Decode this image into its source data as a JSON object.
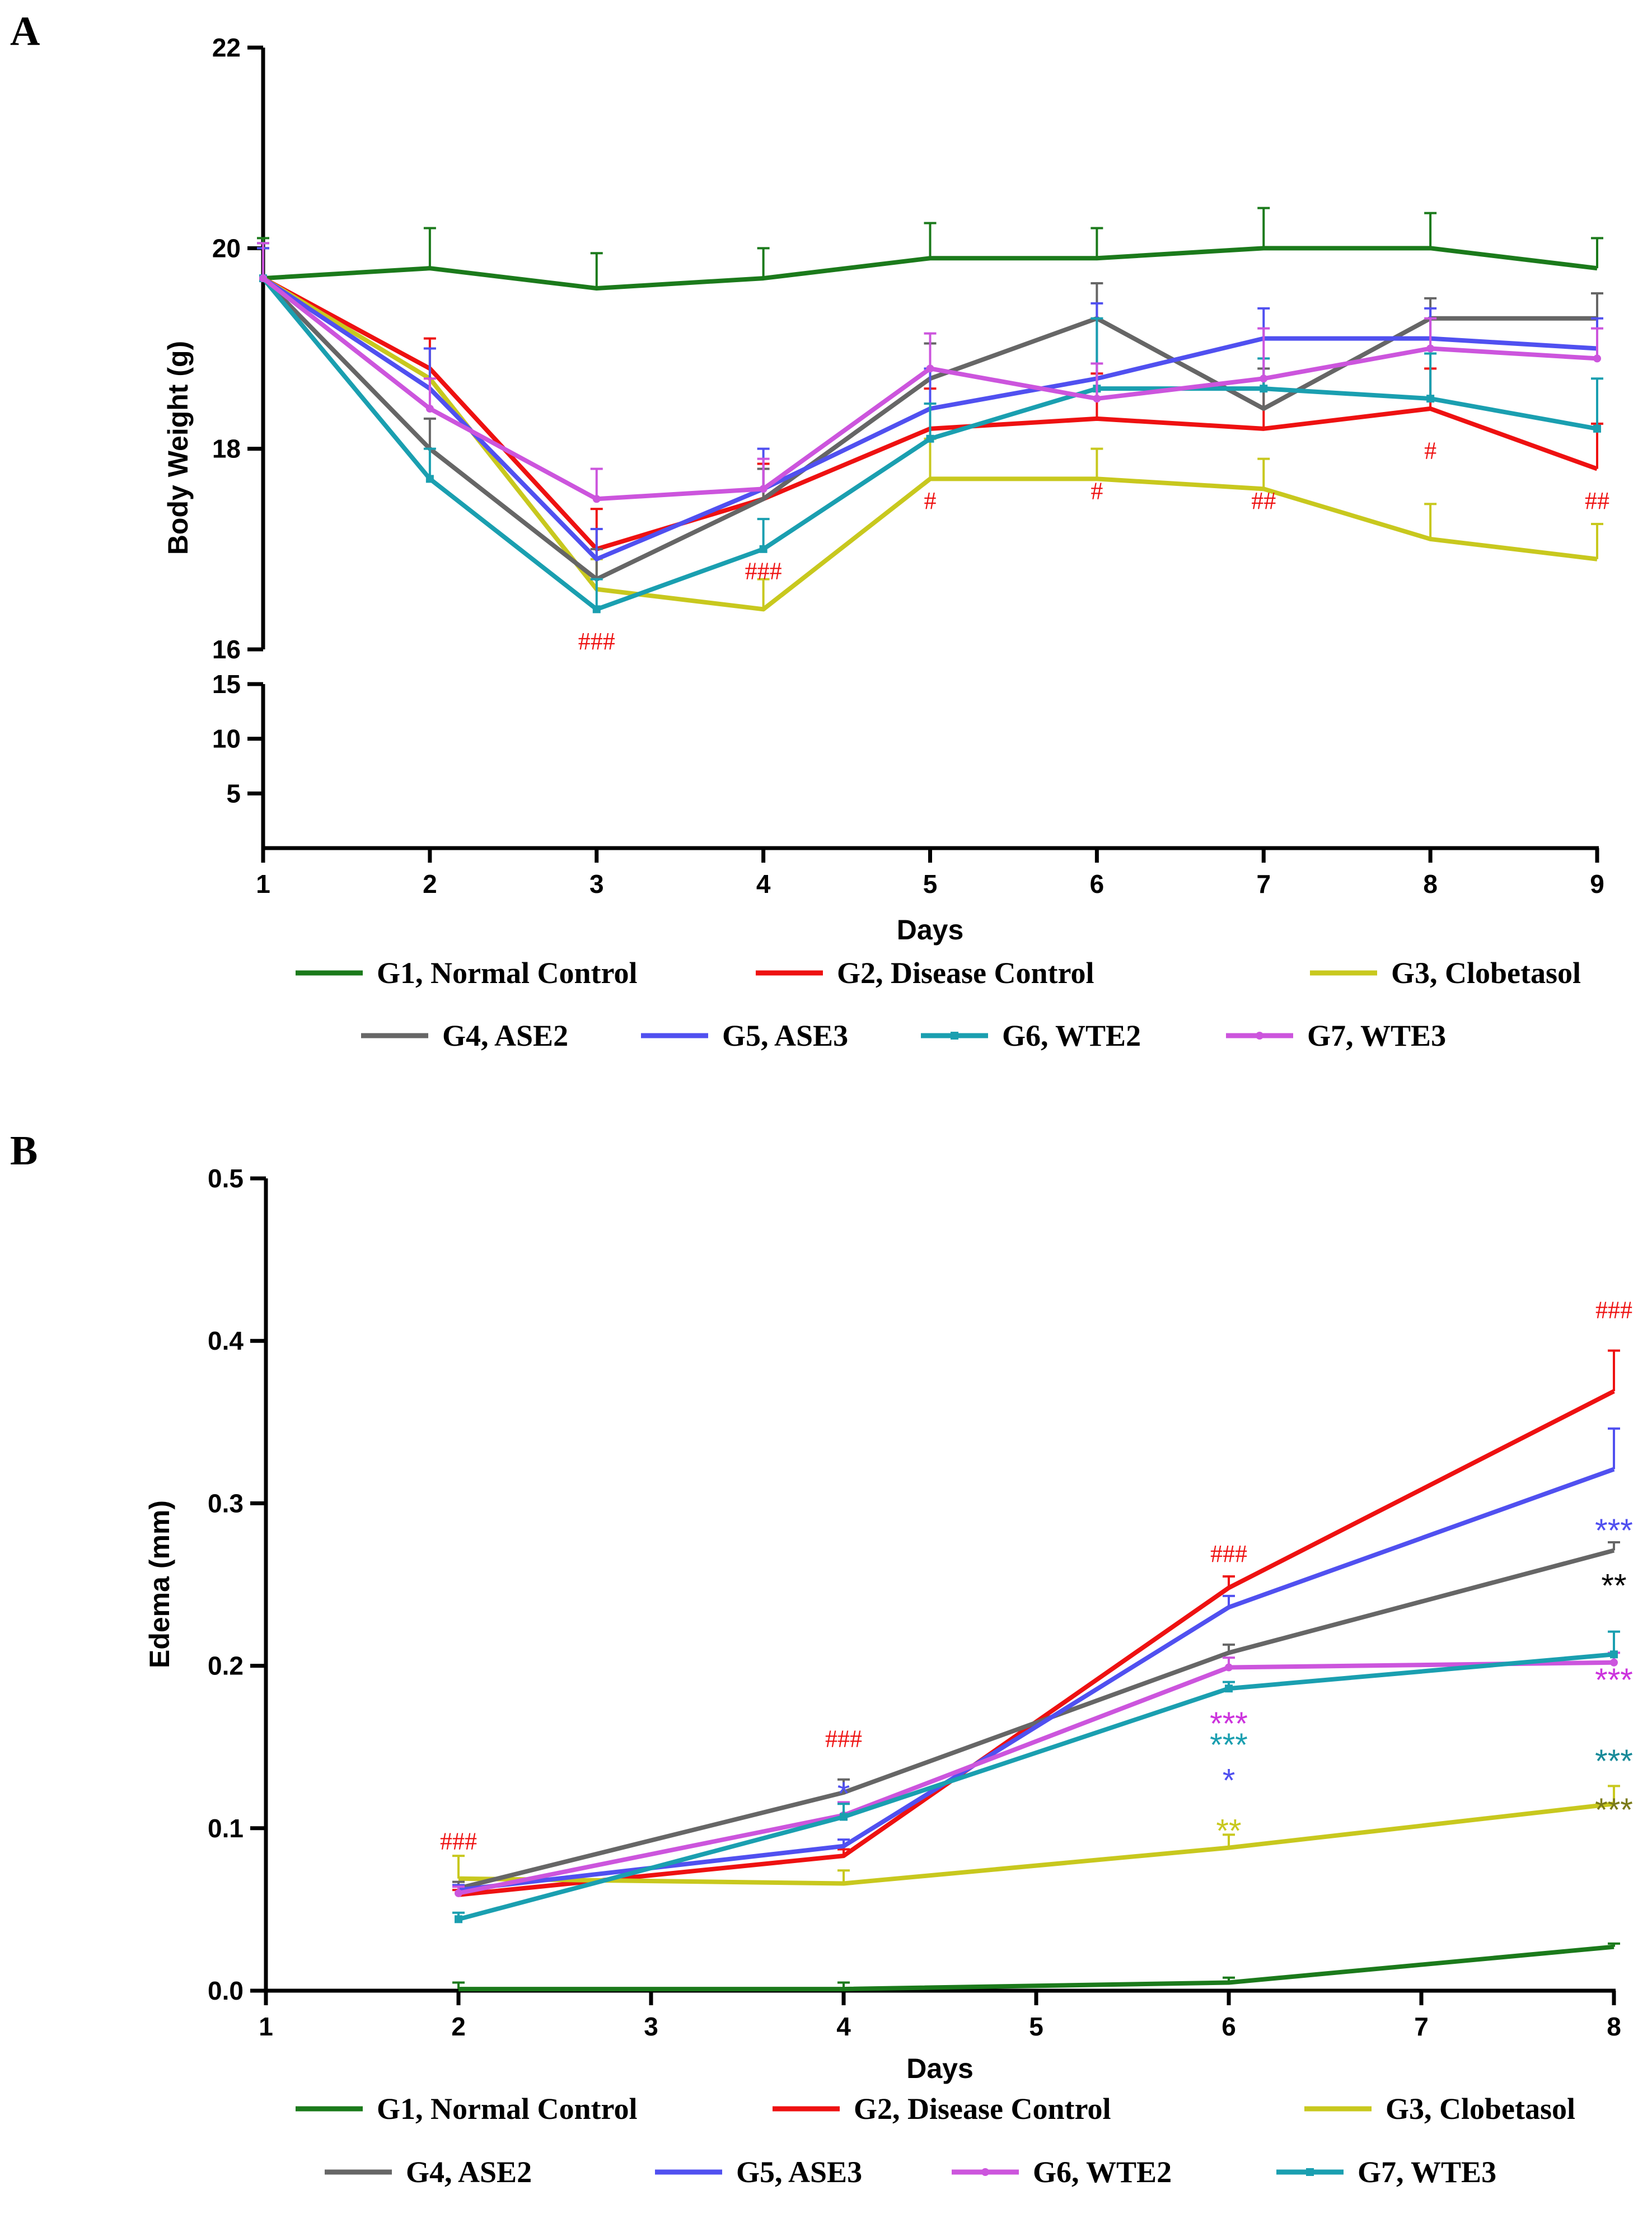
{
  "chart_data": [
    {
      "panel": "A",
      "type": "line",
      "title": "",
      "xlabel": "Days",
      "ylabel": "Body Weight (g)",
      "x": [
        1,
        2,
        3,
        4,
        5,
        6,
        7,
        8,
        9
      ],
      "xlim": [
        1,
        9
      ],
      "y_ticks_upper": [
        16,
        18,
        20,
        22
      ],
      "y_ticks_lower": [
        5,
        10,
        15
      ],
      "ylim_upper": [
        16,
        22
      ],
      "ylim_lower": [
        0,
        15
      ],
      "grid": false,
      "legend_position": "bottom",
      "series": [
        {
          "name": "G1, Normal Control",
          "color": "#1b7a1b",
          "marker": "none",
          "values": [
            19.7,
            19.8,
            19.6,
            19.7,
            19.9,
            19.9,
            20.0,
            20.0,
            19.8
          ],
          "errors": [
            0.4,
            0.4,
            0.35,
            0.3,
            0.35,
            0.3,
            0.4,
            0.35,
            0.3
          ]
        },
        {
          "name": "G2, Disease Control",
          "color": "#ee1111",
          "marker": "none",
          "values": [
            19.7,
            18.8,
            17.0,
            17.5,
            18.2,
            18.3,
            18.2,
            18.4,
            17.8
          ],
          "errors": [
            0.3,
            0.3,
            0.4,
            0.35,
            0.4,
            0.45,
            0.5,
            0.4,
            0.45
          ]
        },
        {
          "name": "G3, Clobetasol",
          "color": "#c8c81e",
          "marker": "none",
          "values": [
            19.7,
            18.7,
            16.6,
            16.4,
            17.7,
            17.7,
            17.6,
            17.1,
            16.9
          ],
          "errors": [
            0.3,
            0.3,
            0.3,
            0.3,
            0.4,
            0.3,
            0.3,
            0.35,
            0.35
          ]
        },
        {
          "name": "G4, ASE2",
          "color": "#666666",
          "marker": "none",
          "values": [
            19.7,
            18.0,
            16.7,
            17.5,
            18.7,
            19.3,
            18.4,
            19.3,
            19.3
          ],
          "errors": [
            0.3,
            0.3,
            0.3,
            0.3,
            0.35,
            0.35,
            0.4,
            0.2,
            0.25
          ]
        },
        {
          "name": "G5, ASE3",
          "color": "#5050f0",
          "marker": "none",
          "values": [
            19.7,
            18.6,
            16.9,
            17.6,
            18.4,
            18.7,
            19.1,
            19.1,
            19.0
          ],
          "errors": [
            0.3,
            0.4,
            0.3,
            0.4,
            0.4,
            0.75,
            0.3,
            0.3,
            0.3
          ]
        },
        {
          "name": "G6, WTE2",
          "color": "#1a9fb0",
          "marker": "square",
          "values": [
            19.7,
            17.7,
            16.4,
            17.0,
            18.1,
            18.6,
            18.6,
            18.5,
            18.2
          ],
          "errors": [
            0.35,
            0.3,
            0.3,
            0.3,
            0.35,
            0.7,
            0.3,
            0.45,
            0.5
          ]
        },
        {
          "name": "G7, WTE3",
          "color": "#cc55dd",
          "marker": "circle",
          "values": [
            19.7,
            18.4,
            17.5,
            17.6,
            18.8,
            18.5,
            18.7,
            19.0,
            18.9
          ],
          "errors": [
            0.35,
            0.3,
            0.3,
            0.3,
            0.35,
            0.35,
            0.5,
            0.3,
            0.3
          ]
        }
      ],
      "annotations": [
        {
          "x": 3,
          "y": 16.0,
          "text": "###",
          "color": "#ee1111"
        },
        {
          "x": 4,
          "y": 16.7,
          "text": "###",
          "color": "#ee1111"
        },
        {
          "x": 5,
          "y": 17.4,
          "text": "#",
          "color": "#ee1111"
        },
        {
          "x": 6,
          "y": 17.5,
          "text": "#",
          "color": "#ee1111"
        },
        {
          "x": 7,
          "y": 17.4,
          "text": "##",
          "color": "#ee1111"
        },
        {
          "x": 8,
          "y": 17.9,
          "text": "#",
          "color": "#ee1111"
        },
        {
          "x": 9,
          "y": 17.4,
          "text": "##",
          "color": "#ee1111"
        }
      ],
      "legend": [
        {
          "label": "G1, Normal Control",
          "color": "#1b7a1b",
          "marker": "none"
        },
        {
          "label": "G2, Disease Control",
          "color": "#ee1111",
          "marker": "none"
        },
        {
          "label": "G3, Clobetasol",
          "color": "#c8c81e",
          "marker": "none"
        },
        {
          "label": "G4, ASE2",
          "color": "#666666",
          "marker": "none"
        },
        {
          "label": "G5, ASE3",
          "color": "#5050f0",
          "marker": "none"
        },
        {
          "label": "G6, WTE2",
          "color": "#1a9fb0",
          "marker": "square"
        },
        {
          "label": "G7, WTE3",
          "color": "#cc55dd",
          "marker": "circle"
        }
      ]
    },
    {
      "panel": "B",
      "type": "line",
      "title": "",
      "xlabel": "Days",
      "ylabel": "Edema (mm)",
      "x": [
        2,
        4,
        6,
        8
      ],
      "x_ticks": [
        1,
        2,
        3,
        4,
        5,
        6,
        7,
        8
      ],
      "xlim": [
        1,
        8
      ],
      "y_ticks": [
        0.0,
        0.1,
        0.2,
        0.3,
        0.4,
        0.5
      ],
      "y_tick_labels": [
        "0.0",
        "0.1",
        "0.2",
        "0.3",
        "0.4",
        "0.5"
      ],
      "ylim": [
        0.0,
        0.5
      ],
      "grid": false,
      "legend_position": "bottom",
      "series": [
        {
          "name": "G1, Normal Control",
          "color": "#1b7a1b",
          "marker": "none",
          "values": [
            0.001,
            0.001,
            0.005,
            0.027
          ],
          "errors": [
            0.004,
            0.004,
            0.003,
            0.002
          ]
        },
        {
          "name": "G2, Disease Control",
          "color": "#ee1111",
          "marker": "none",
          "values": [
            0.059,
            0.083,
            0.248,
            0.369
          ],
          "errors": [
            0.003,
            0.004,
            0.007,
            0.025
          ]
        },
        {
          "name": "G3, Clobetasol",
          "color": "#c8c81e",
          "marker": "none",
          "values": [
            0.069,
            0.066,
            0.088,
            0.115
          ],
          "errors": [
            0.014,
            0.008,
            0.008,
            0.011
          ]
        },
        {
          "name": "G4, ASE2",
          "color": "#666666",
          "marker": "none",
          "values": [
            0.063,
            0.122,
            0.208,
            0.271
          ],
          "errors": [
            0.004,
            0.008,
            0.005,
            0.005
          ]
        },
        {
          "name": "G5, ASE3",
          "color": "#5050f0",
          "marker": "none",
          "values": [
            0.062,
            0.089,
            0.236,
            0.321
          ],
          "errors": [
            0.003,
            0.004,
            0.007,
            0.025
          ]
        },
        {
          "name": "G6, WTE2",
          "color": "#cc55dd",
          "marker": "circle",
          "values": [
            0.06,
            0.108,
            0.199,
            0.202
          ],
          "errors": [
            0.004,
            0.008,
            0.006,
            0.006
          ]
        },
        {
          "name": "G7, WTE3",
          "color": "#1a9fb0",
          "marker": "square",
          "values": [
            0.044,
            0.107,
            0.186,
            0.207
          ],
          "errors": [
            0.004,
            0.008,
            0.004,
            0.014
          ]
        }
      ],
      "annotations": [
        {
          "x": 2,
          "y": 0.087,
          "text": "###",
          "color": "#ee1111"
        },
        {
          "x": 4,
          "y": 0.122,
          "text": "*",
          "color": "#5050f0"
        },
        {
          "x": 4,
          "y": 0.15,
          "text": "###",
          "color": "#ee1111"
        },
        {
          "x": 6,
          "y": 0.099,
          "text": "**",
          "color": "#c8c81e"
        },
        {
          "x": 6,
          "y": 0.13,
          "text": "*",
          "color": "#5050f0"
        },
        {
          "x": 6,
          "y": 0.152,
          "text": "***",
          "color": "#1a9fb0"
        },
        {
          "x": 6,
          "y": 0.165,
          "text": "***",
          "color": "#cc33dd"
        },
        {
          "x": 6,
          "y": 0.264,
          "text": "###",
          "color": "#ee1111"
        },
        {
          "x": 8,
          "y": 0.112,
          "text": "***",
          "color": "#7a7a18"
        },
        {
          "x": 8,
          "y": 0.142,
          "text": "***",
          "color": "#178a99"
        },
        {
          "x": 8,
          "y": 0.192,
          "text": "***",
          "color": "#cc33dd"
        },
        {
          "x": 8,
          "y": 0.25,
          "text": "**",
          "color": "#000000"
        },
        {
          "x": 8,
          "y": 0.284,
          "text": "***",
          "color": "#5050f0"
        },
        {
          "x": 8,
          "y": 0.414,
          "text": "###",
          "color": "#ee1111"
        }
      ],
      "legend": [
        {
          "label": "G1, Normal Control",
          "color": "#1b7a1b",
          "marker": "none"
        },
        {
          "label": "G2, Disease Control",
          "color": "#ee1111",
          "marker": "none"
        },
        {
          "label": "G3, Clobetasol",
          "color": "#c8c81e",
          "marker": "none"
        },
        {
          "label": "G4, ASE2",
          "color": "#666666",
          "marker": "none"
        },
        {
          "label": "G5, ASE3",
          "color": "#5050f0",
          "marker": "none"
        },
        {
          "label": "G6, WTE2",
          "color": "#cc55dd",
          "marker": "circle"
        },
        {
          "label": "G7, WTE3",
          "color": "#1a9fb0",
          "marker": "square"
        }
      ]
    }
  ]
}
